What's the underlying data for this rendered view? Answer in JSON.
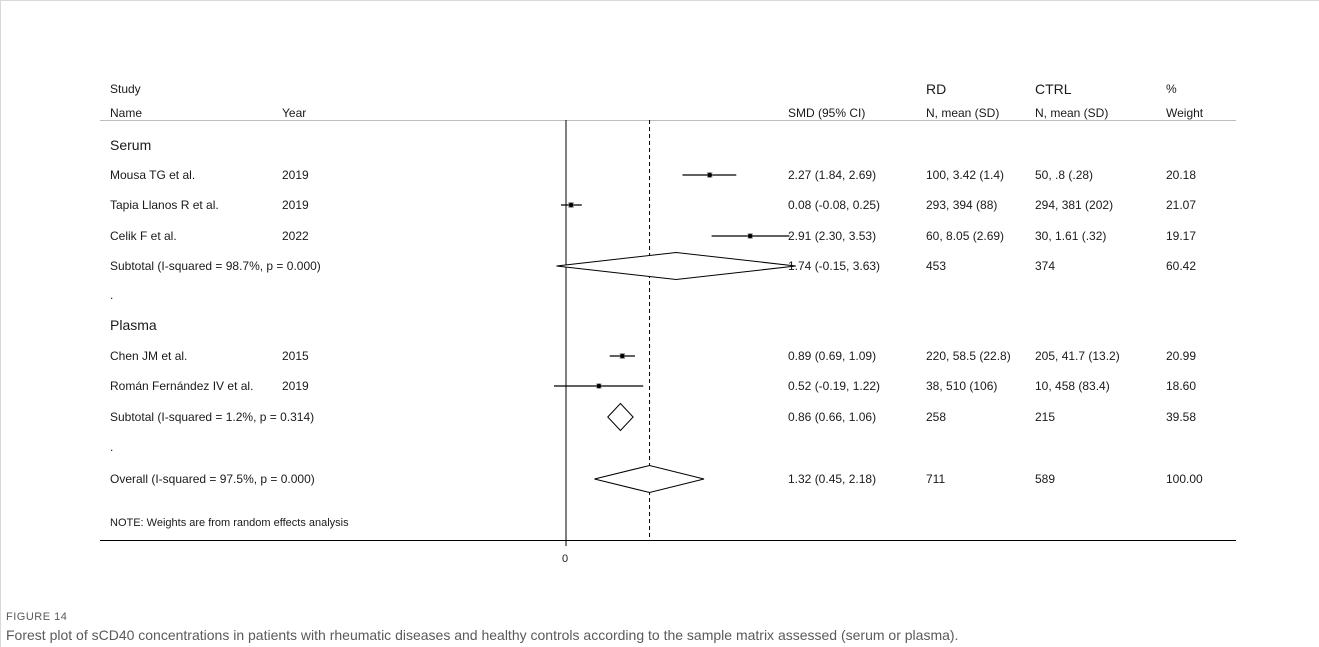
{
  "headers": {
    "study": "Study",
    "name": "Name",
    "year": "Year",
    "smd": "SMD (95% CI)",
    "rd_top": "RD",
    "rd_sub": "N, mean (SD)",
    "ctrl_top": "CTRL",
    "ctrl_sub": "N, mean (SD)",
    "weight_top": "%",
    "weight_sub": "Weight"
  },
  "groups": [
    {
      "label": "Serum",
      "studies": [
        {
          "name": "Mousa TG et al.",
          "year": "2019",
          "smd_text": "2.27 (1.84, 2.69)",
          "rd": "100, 3.42 (1.4)",
          "ctrl": "50, .8 (.28)",
          "weight": "20.18"
        },
        {
          "name": "Tapia Llanos R et al.",
          "year": "2019",
          "smd_text": "0.08 (-0.08, 0.25)",
          "rd": "293, 394 (88)",
          "ctrl": "294, 381 (202)",
          "weight": "21.07"
        },
        {
          "name": "Celik F et al.",
          "year": "2022",
          "smd_text": "2.91 (2.30, 3.53)",
          "rd": "60, 8.05 (2.69)",
          "ctrl": "30, 1.61 (.32)",
          "weight": "19.17"
        }
      ],
      "subtotal": {
        "label": "Subtotal  (I-squared = 98.7%, p = 0.000)",
        "smd_text": "1.74 (-0.15, 3.63)",
        "rd": "453",
        "ctrl": "374",
        "weight": "60.42"
      }
    },
    {
      "label": "Plasma",
      "studies": [
        {
          "name": "Chen JM et al.",
          "year": "2015",
          "smd_text": "0.89 (0.69, 1.09)",
          "rd": "220, 58.5 (22.8)",
          "ctrl": "205, 41.7 (13.2)",
          "weight": "20.99"
        },
        {
          "name": "Román Fernández IV et al.",
          "year": "2019",
          "smd_text": "0.52 (-0.19, 1.22)",
          "rd": "38, 510 (106)",
          "ctrl": "10, 458 (83.4)",
          "weight": "18.60"
        }
      ],
      "subtotal": {
        "label": "Subtotal  (I-squared = 1.2%, p = 0.314)",
        "smd_text": "0.86 (0.66, 1.06)",
        "rd": "258",
        "ctrl": "215",
        "weight": "39.58"
      }
    }
  ],
  "separator": ".",
  "overall": {
    "label": "Overall  (I-squared = 97.5%, p = 0.000)",
    "smd_text": "1.32 (0.45, 2.18)",
    "rd": "711",
    "ctrl": "589",
    "weight": "100.00"
  },
  "note": "NOTE: Weights are from random effects analysis",
  "axis_zero_label": "0",
  "caption": {
    "label": "FIGURE 14",
    "text": "Forest plot of sCD40 concentrations in patients with rheumatic diseases and healthy controls according to the sample matrix assessed (serum or plasma)."
  },
  "chart_data": {
    "type": "forest",
    "measure": "SMD (95% CI)",
    "null_line": 0,
    "overall_line": 1.32,
    "studies": [
      {
        "name": "Mousa TG et al.",
        "group": "Serum",
        "est": 2.27,
        "lo": 1.84,
        "hi": 2.69,
        "weight": 20.18
      },
      {
        "name": "Tapia Llanos R et al.",
        "group": "Serum",
        "est": 0.08,
        "lo": -0.08,
        "hi": 0.25,
        "weight": 21.07
      },
      {
        "name": "Celik F et al.",
        "group": "Serum",
        "est": 2.91,
        "lo": 2.3,
        "hi": 3.53,
        "weight": 19.17
      },
      {
        "name": "Chen JM et al.",
        "group": "Plasma",
        "est": 0.89,
        "lo": 0.69,
        "hi": 1.09,
        "weight": 20.99
      },
      {
        "name": "Román Fernández IV et al.",
        "group": "Plasma",
        "est": 0.52,
        "lo": -0.19,
        "hi": 1.22,
        "weight": 18.6
      }
    ],
    "pooled": [
      {
        "name": "Subtotal Serum",
        "est": 1.74,
        "lo": -0.15,
        "hi": 3.63,
        "weight": 60.42
      },
      {
        "name": "Subtotal Plasma",
        "est": 0.86,
        "lo": 0.66,
        "hi": 1.06,
        "weight": 39.58
      },
      {
        "name": "Overall",
        "est": 1.32,
        "lo": 0.45,
        "hi": 2.18,
        "weight": 100.0
      }
    ]
  }
}
